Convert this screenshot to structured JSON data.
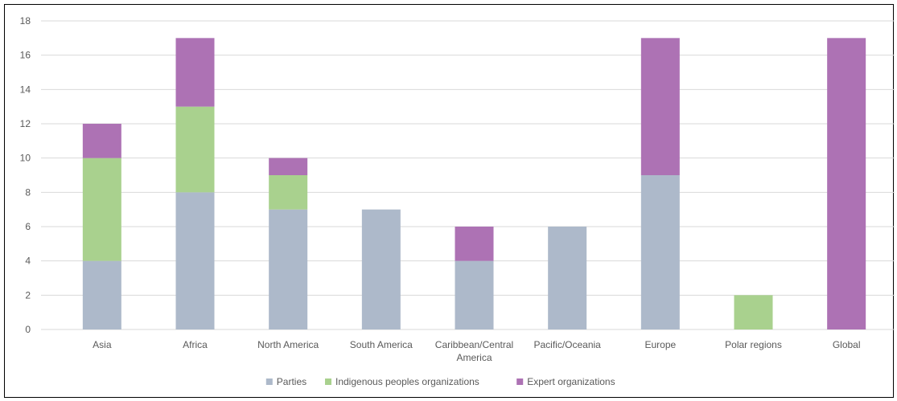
{
  "chart_data": {
    "type": "bar",
    "stacked": true,
    "title": "",
    "xlabel": "",
    "ylabel": "",
    "ylim": [
      0,
      18
    ],
    "yticks": [
      0,
      2,
      4,
      6,
      8,
      10,
      12,
      14,
      16,
      18
    ],
    "grid": true,
    "legend_position": "bottom",
    "categories": [
      [
        "Asia"
      ],
      [
        "Africa"
      ],
      [
        "North America"
      ],
      [
        "South America"
      ],
      [
        "Caribbean/Central",
        "America"
      ],
      [
        "Pacific/Oceania"
      ],
      [
        "Europe"
      ],
      [
        "Polar regions"
      ],
      [
        "Global"
      ]
    ],
    "series": [
      {
        "name": "Parties",
        "color": "#adb9ca",
        "values": [
          4,
          8,
          7,
          7,
          4,
          6,
          9,
          0,
          0
        ]
      },
      {
        "name": "Indigenous peoples organizations",
        "color": "#a9d18e",
        "values": [
          6,
          5,
          2,
          0,
          0,
          0,
          0,
          2,
          0
        ]
      },
      {
        "name": "Expert organizations",
        "color": "#ad72b4",
        "values": [
          2,
          4,
          1,
          0,
          2,
          0,
          8,
          0,
          17
        ]
      }
    ]
  }
}
